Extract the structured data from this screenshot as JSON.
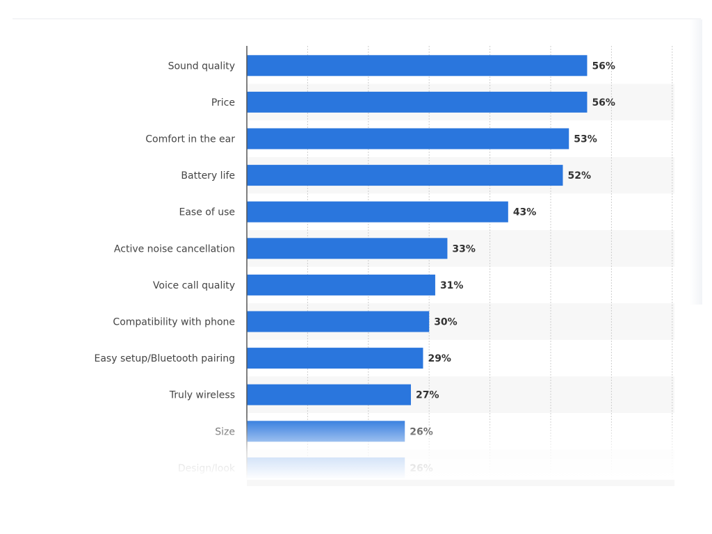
{
  "chart_data": {
    "type": "bar",
    "orientation": "horizontal",
    "categories": [
      "Sound quality",
      "Price",
      "Comfort in the ear",
      "Battery life",
      "Ease of use",
      "Active noise cancellation",
      "Voice call quality",
      "Compatibility with phone",
      "Easy setup/Bluetooth pairing",
      "Truly wireless",
      "Size",
      "Design/look"
    ],
    "values": [
      56,
      56,
      53,
      52,
      43,
      33,
      31,
      30,
      29,
      27,
      26,
      26
    ],
    "value_labels": [
      "56%",
      "56%",
      "53%",
      "52%",
      "43%",
      "33%",
      "31%",
      "30%",
      "29%",
      "27%",
      "26%",
      "26%"
    ],
    "title": "",
    "xlabel": "",
    "ylabel": "",
    "xlim": [
      0,
      70
    ],
    "grid": true,
    "legend": "none",
    "colors": {
      "bar": "#2a76dd",
      "band": "#f7f7f7",
      "grid": "#cccccc",
      "axis": "#555555"
    }
  }
}
